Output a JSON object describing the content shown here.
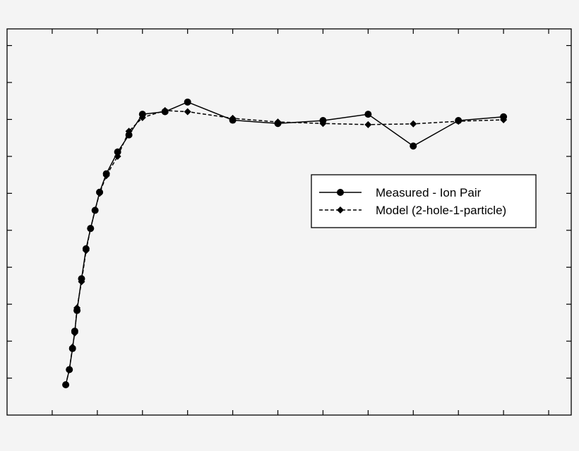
{
  "chart_data": {
    "type": "line",
    "title": "",
    "xlabel": "",
    "ylabel": "",
    "grid": false,
    "legend_position": "center-right",
    "x_ticks": [
      1,
      2,
      3,
      4,
      5,
      6,
      7,
      8,
      9,
      10,
      11,
      12
    ],
    "y_ticks": [
      1,
      2,
      3,
      4,
      5,
      6,
      7,
      8,
      9,
      10
    ],
    "xlim": [
      0,
      12.5
    ],
    "ylim": [
      0,
      10.45
    ],
    "colors": {
      "line": "#000000",
      "background": "#f4f4f4"
    },
    "series": [
      {
        "name": "Measured - Ion Pair",
        "marker": "circle",
        "line_style": "solid",
        "points": [
          [
            1.3,
            0.82
          ],
          [
            1.38,
            1.23
          ],
          [
            1.45,
            1.8
          ],
          [
            1.5,
            2.27
          ],
          [
            1.55,
            2.83
          ],
          [
            1.65,
            3.69
          ],
          [
            1.75,
            4.5
          ],
          [
            1.85,
            5.05
          ],
          [
            1.95,
            5.54
          ],
          [
            2.05,
            6.03
          ],
          [
            2.2,
            6.53
          ],
          [
            2.45,
            7.12
          ],
          [
            2.7,
            7.58
          ],
          [
            3.0,
            8.14
          ],
          [
            3.5,
            8.21
          ],
          [
            4.0,
            8.47
          ],
          [
            5.0,
            7.98
          ],
          [
            6.0,
            7.89
          ],
          [
            7.0,
            7.97
          ],
          [
            8.0,
            8.14
          ],
          [
            9.0,
            7.28
          ],
          [
            10.0,
            7.97
          ],
          [
            11.0,
            8.07
          ]
        ]
      },
      {
        "name": "Model (2-hole-1-particle)",
        "marker": "diamond",
        "line_style": "dashed",
        "points": [
          [
            1.3,
            0.82
          ],
          [
            1.38,
            1.23
          ],
          [
            1.45,
            1.84
          ],
          [
            1.5,
            2.22
          ],
          [
            1.55,
            2.9
          ],
          [
            1.65,
            3.61
          ],
          [
            1.75,
            4.45
          ],
          [
            1.85,
            5.05
          ],
          [
            1.95,
            5.55
          ],
          [
            2.05,
            6.0
          ],
          [
            2.2,
            6.48
          ],
          [
            2.45,
            7.0
          ],
          [
            2.7,
            7.68
          ],
          [
            3.0,
            8.05
          ],
          [
            3.5,
            8.24
          ],
          [
            4.0,
            8.21
          ],
          [
            5.0,
            8.03
          ],
          [
            6.0,
            7.93
          ],
          [
            7.0,
            7.89
          ],
          [
            8.0,
            7.86
          ],
          [
            9.0,
            7.88
          ],
          [
            10.0,
            7.95
          ],
          [
            11.0,
            7.99
          ]
        ]
      }
    ]
  }
}
